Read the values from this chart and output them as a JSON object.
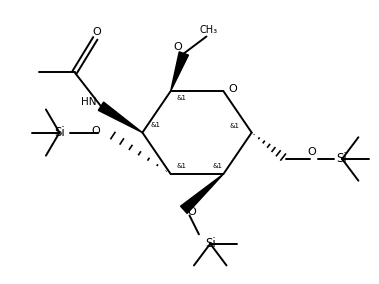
{
  "bg_color": "#ffffff",
  "line_color": "#000000",
  "line_width": 1.4,
  "font_size": 7.5,
  "figsize": [
    3.79,
    2.84
  ],
  "dpi": 100,
  "xlim": [
    0,
    10
  ],
  "ylim": [
    0,
    7.5
  ]
}
